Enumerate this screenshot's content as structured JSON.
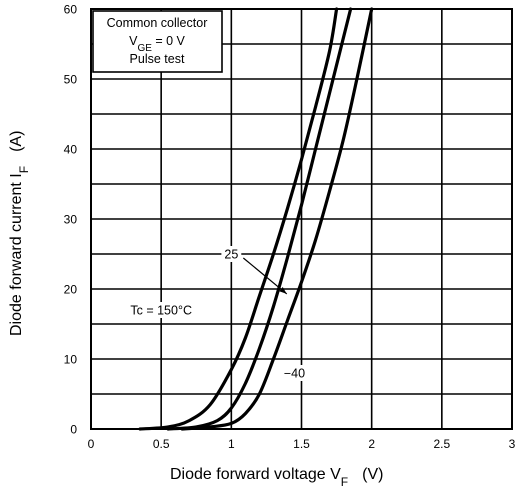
{
  "chart_data": {
    "type": "line",
    "xlabel": "Diode forward voltage   V",
    "xlabel_sub": "F",
    "xlabel_unit": "(V)",
    "ylabel": "Diode forward current   I",
    "ylabel_sub": "F",
    "ylabel_unit": "(A)",
    "xlim": [
      0,
      3
    ],
    "ylim": [
      0,
      60
    ],
    "xticks": [
      "0",
      "0.5",
      "1",
      "1.5",
      "2",
      "2.5",
      "3"
    ],
    "yticks": [
      "0",
      "10",
      "20",
      "30",
      "40",
      "50",
      "60"
    ],
    "grid": true,
    "legend": {
      "placement": "top-left",
      "line1": "Common collector",
      "line2_main": "V",
      "line2_sub": "GE",
      "line2_rest": " = 0 V",
      "line3": "Pulse test"
    },
    "series": [
      {
        "name": "Tc = 150°C",
        "x": [
          0.35,
          0.55,
          0.7,
          0.85,
          1.0,
          1.1,
          1.2,
          1.3,
          1.4,
          1.5,
          1.6,
          1.7,
          1.75
        ],
        "y": [
          0,
          0.3,
          1.2,
          3.5,
          8.5,
          13,
          19,
          25,
          31.5,
          38.5,
          46,
          54,
          60
        ]
      },
      {
        "name": "25",
        "x": [
          0.55,
          0.75,
          0.9,
          1.0,
          1.1,
          1.2,
          1.3,
          1.4,
          1.5,
          1.6,
          1.7,
          1.8,
          1.85
        ],
        "y": [
          0,
          0.3,
          1.2,
          3,
          6.5,
          11.5,
          17.5,
          24.5,
          32,
          40,
          48,
          56,
          60
        ]
      },
      {
        "name": "−40",
        "x": [
          0.65,
          0.85,
          1.0,
          1.1,
          1.2,
          1.3,
          1.4,
          1.5,
          1.6,
          1.7,
          1.8,
          1.9,
          2.0
        ],
        "y": [
          0,
          0.3,
          0.8,
          2.2,
          5,
          10,
          15.5,
          21,
          27,
          34,
          41.5,
          50.5,
          60
        ]
      }
    ],
    "annotations": [
      {
        "label": "25",
        "text_at": [
          1.0,
          25
        ],
        "arrow_to": [
          1.395,
          19.3
        ]
      },
      {
        "label": "Tc = 150°C",
        "text_at": [
          0.5,
          17
        ]
      },
      {
        "label": "−40",
        "text_at": [
          1.45,
          8
        ]
      }
    ]
  }
}
